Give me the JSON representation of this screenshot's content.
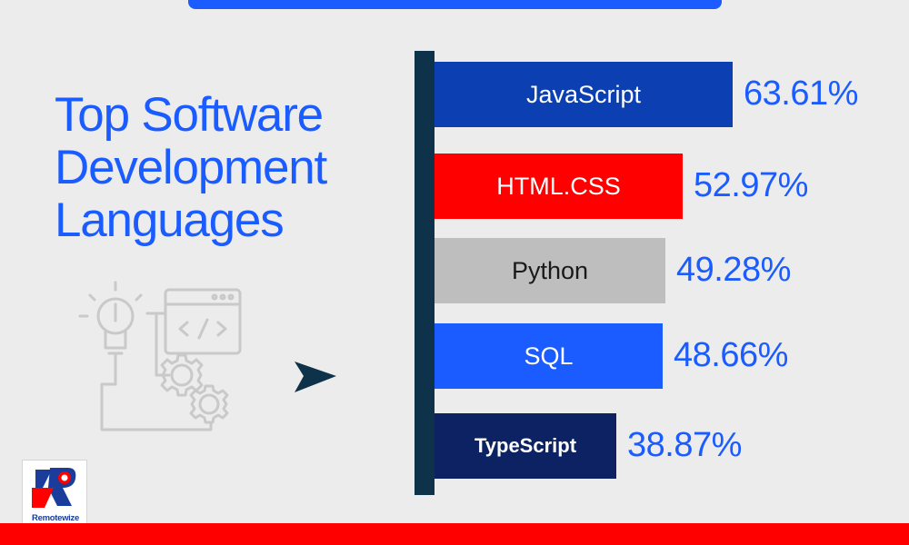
{
  "title_lines": [
    "Top Software",
    "Development",
    "Languages"
  ],
  "logo": {
    "text": "Remotewize",
    "name": "remotewize-logo"
  },
  "colors": {
    "accent": "#1a5cff",
    "brand_red": "#ff0000",
    "axis": "#0d3249",
    "background": "#ececec"
  },
  "chart_data": {
    "type": "bar",
    "orientation": "horizontal",
    "categories": [
      "JavaScript",
      "HTML.CSS",
      "Python",
      "SQL",
      "TypeScript"
    ],
    "values": [
      63.61,
      52.97,
      49.28,
      48.66,
      38.87
    ],
    "value_labels": [
      "63.61%",
      "52.97%",
      "49.28%",
      "48.66%",
      "38.87%"
    ],
    "bar_colors": [
      "#0b3fb2",
      "#ff0000",
      "#bebebe",
      "#1a5cff",
      "#0c2263"
    ],
    "label_colors": [
      "#ffffff",
      "#ffffff",
      "#1a1a1a",
      "#ffffff",
      "#ffffff"
    ],
    "title": "Top Software Development Languages",
    "xlabel": "",
    "ylabel": "",
    "legend": "none",
    "grid": false
  }
}
